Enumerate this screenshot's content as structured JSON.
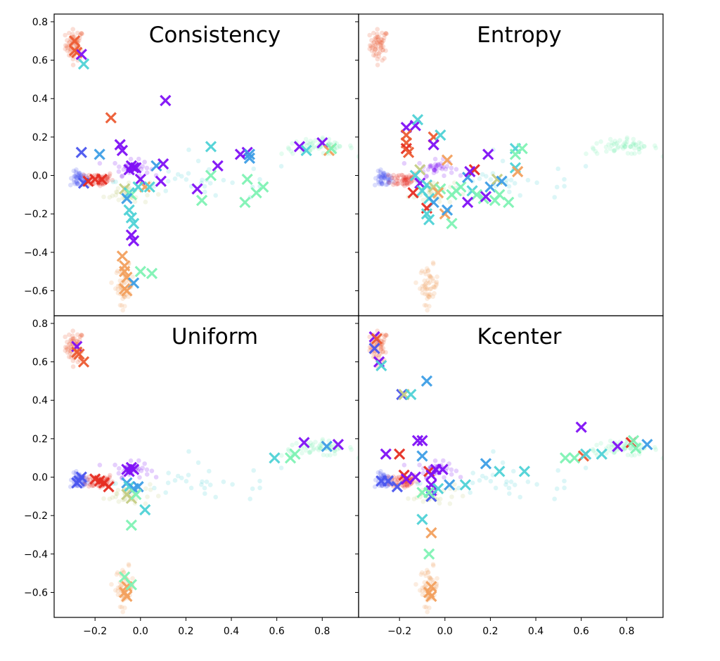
{
  "chart_data": {
    "type": "scatter",
    "layout": "2x2 grid, shared axes",
    "xlim": [
      -0.38,
      0.96
    ],
    "ylim": [
      -0.73,
      0.84
    ],
    "xticks": [
      -0.2,
      0.0,
      0.2,
      0.4,
      0.6,
      0.8
    ],
    "xtick_labels": [
      "−0.2",
      "0.0",
      "0.2",
      "0.4",
      "0.6",
      "0.8"
    ],
    "yticks": [
      0.8,
      0.6,
      0.4,
      0.2,
      0.0,
      -0.2,
      -0.4,
      -0.6
    ],
    "ytick_labels": [
      "0.8",
      "0.6",
      "0.4",
      "0.2",
      "0.0",
      "−0.2",
      "−0.4",
      "−0.6"
    ],
    "xlabel": "",
    "ylabel": "",
    "grid": false,
    "legend": "none",
    "class_colors": [
      "#7f10f6",
      "#4a55ee",
      "#3d9ee6",
      "#4fd2d6",
      "#7ff2b4",
      "#c4cc84",
      "#f2a05e",
      "#ec5b33",
      "#e62d22"
    ],
    "background_points": {
      "description": "faded pool of unlabeled samples, identical in all panels",
      "clusters": [
        {
          "class": 7,
          "center": [
            -0.29,
            0.68
          ],
          "spread": [
            0.02,
            0.04
          ],
          "count": 60
        },
        {
          "class": 1,
          "center": [
            -0.27,
            -0.02
          ],
          "spread": [
            0.02,
            0.02
          ],
          "count": 50
        },
        {
          "class": 8,
          "center": [
            -0.18,
            -0.02
          ],
          "spread": [
            0.03,
            0.02
          ],
          "count": 55
        },
        {
          "class": 0,
          "center": [
            -0.04,
            0.04
          ],
          "spread": [
            0.04,
            0.02
          ],
          "count": 40
        },
        {
          "class": 5,
          "center": [
            -0.06,
            -0.09
          ],
          "spread": [
            0.05,
            0.03
          ],
          "count": 35
        },
        {
          "class": 6,
          "center": [
            -0.07,
            -0.57
          ],
          "spread": [
            0.02,
            0.05
          ],
          "count": 55
        },
        {
          "class": 4,
          "center": [
            0.78,
            0.15
          ],
          "spread": [
            0.08,
            0.02
          ],
          "count": 60
        },
        {
          "class": 3,
          "center": [
            0.3,
            -0.03
          ],
          "spread": [
            0.2,
            0.05
          ],
          "count": 30
        }
      ]
    },
    "panels": [
      {
        "title": "Consistency",
        "position": "top-left",
        "selected": [
          [
            -0.29,
            0.7,
            7
          ],
          [
            -0.28,
            0.64,
            7
          ],
          [
            -0.26,
            0.63,
            0
          ],
          [
            -0.25,
            0.58,
            3
          ],
          [
            -0.29,
            0.65,
            7
          ],
          [
            -0.13,
            0.3,
            7
          ],
          [
            0.11,
            0.39,
            0
          ],
          [
            -0.26,
            0.12,
            1
          ],
          [
            -0.18,
            0.11,
            2
          ],
          [
            -0.09,
            0.16,
            0
          ],
          [
            -0.08,
            0.13,
            0
          ],
          [
            -0.25,
            -0.04,
            1
          ],
          [
            -0.2,
            -0.02,
            8
          ],
          [
            -0.17,
            -0.02,
            8
          ],
          [
            -0.23,
            -0.03,
            8
          ],
          [
            -0.04,
            0.05,
            0
          ],
          [
            -0.03,
            0.04,
            0
          ],
          [
            -0.05,
            0.03,
            0
          ],
          [
            -0.02,
            0.04,
            0
          ],
          [
            0.07,
            0.05,
            2
          ],
          [
            0.1,
            0.06,
            0
          ],
          [
            0.09,
            -0.03,
            0
          ],
          [
            0.0,
            -0.02,
            0
          ],
          [
            -0.07,
            -0.07,
            5
          ],
          [
            -0.05,
            -0.09,
            3
          ],
          [
            -0.04,
            -0.1,
            4
          ],
          [
            -0.06,
            -0.12,
            2
          ],
          [
            0.02,
            -0.06,
            6
          ],
          [
            -0.01,
            -0.06,
            3
          ],
          [
            0.04,
            -0.06,
            3
          ],
          [
            -0.05,
            -0.18,
            3
          ],
          [
            -0.04,
            -0.22,
            3
          ],
          [
            -0.03,
            -0.25,
            3
          ],
          [
            -0.04,
            -0.31,
            0
          ],
          [
            -0.03,
            -0.34,
            0
          ],
          [
            0.25,
            -0.07,
            0
          ],
          [
            0.27,
            -0.13,
            4
          ],
          [
            0.31,
            0.15,
            3
          ],
          [
            0.34,
            0.05,
            0
          ],
          [
            0.31,
            0.0,
            4
          ],
          [
            0.44,
            0.11,
            0
          ],
          [
            0.47,
            0.12,
            0
          ],
          [
            0.48,
            0.11,
            2
          ],
          [
            0.48,
            0.09,
            2
          ],
          [
            0.47,
            -0.02,
            4
          ],
          [
            0.46,
            -0.14,
            4
          ],
          [
            0.51,
            -0.09,
            4
          ],
          [
            0.54,
            -0.06,
            4
          ],
          [
            0.7,
            0.15,
            0
          ],
          [
            0.73,
            0.13,
            3
          ],
          [
            0.8,
            0.17,
            0
          ],
          [
            0.83,
            0.13,
            6
          ],
          [
            0.84,
            0.14,
            4
          ],
          [
            -0.08,
            -0.42,
            6
          ],
          [
            -0.07,
            -0.47,
            6
          ],
          [
            -0.07,
            -0.5,
            6
          ],
          [
            -0.06,
            -0.53,
            6
          ],
          [
            -0.03,
            -0.56,
            2
          ],
          [
            -0.07,
            -0.59,
            6
          ],
          [
            -0.06,
            -0.6,
            6
          ],
          [
            0.0,
            -0.5,
            4
          ],
          [
            0.05,
            -0.51,
            4
          ]
        ]
      },
      {
        "title": "Entropy",
        "position": "top-right",
        "selected": [
          [
            -0.17,
            0.25,
            0
          ],
          [
            -0.13,
            0.26,
            0
          ],
          [
            -0.12,
            0.29,
            3
          ],
          [
            -0.17,
            0.21,
            7
          ],
          [
            -0.17,
            0.17,
            7
          ],
          [
            -0.17,
            0.14,
            8
          ],
          [
            -0.16,
            0.12,
            7
          ],
          [
            -0.05,
            0.2,
            7
          ],
          [
            -0.02,
            0.21,
            3
          ],
          [
            -0.05,
            0.16,
            0
          ],
          [
            0.01,
            0.08,
            6
          ],
          [
            -0.11,
            0.03,
            5
          ],
          [
            -0.13,
            0.0,
            3
          ],
          [
            -0.11,
            -0.04,
            0
          ],
          [
            -0.1,
            -0.08,
            3
          ],
          [
            -0.14,
            -0.09,
            8
          ],
          [
            -0.08,
            -0.05,
            3
          ],
          [
            -0.05,
            -0.06,
            5
          ],
          [
            -0.02,
            -0.07,
            4
          ],
          [
            -0.03,
            -0.09,
            6
          ],
          [
            -0.07,
            -0.12,
            3
          ],
          [
            -0.05,
            -0.14,
            2
          ],
          [
            -0.08,
            -0.17,
            8
          ],
          [
            -0.08,
            -0.2,
            3
          ],
          [
            -0.07,
            -0.23,
            3
          ],
          [
            0.0,
            -0.2,
            6
          ],
          [
            0.01,
            -0.18,
            2
          ],
          [
            0.03,
            -0.25,
            4
          ],
          [
            0.03,
            -0.1,
            4
          ],
          [
            0.05,
            -0.08,
            4
          ],
          [
            0.07,
            -0.06,
            4
          ],
          [
            0.1,
            -0.01,
            2
          ],
          [
            0.13,
            0.03,
            8
          ],
          [
            0.11,
            0.02,
            0
          ],
          [
            0.12,
            -0.08,
            3
          ],
          [
            0.14,
            -0.1,
            4
          ],
          [
            0.17,
            -0.12,
            4
          ],
          [
            0.2,
            -0.06,
            2
          ],
          [
            0.23,
            -0.02,
            5
          ],
          [
            0.22,
            -0.13,
            4
          ],
          [
            0.1,
            -0.14,
            0
          ],
          [
            0.19,
            0.11,
            0
          ],
          [
            0.25,
            -0.03,
            2
          ],
          [
            0.31,
            0.14,
            3
          ],
          [
            0.34,
            0.14,
            4
          ],
          [
            0.31,
            0.11,
            4
          ],
          [
            0.31,
            0.04,
            3
          ],
          [
            0.32,
            0.02,
            6
          ],
          [
            0.24,
            -0.1,
            4
          ],
          [
            0.18,
            -0.11,
            0
          ],
          [
            0.28,
            -0.14,
            4
          ]
        ]
      },
      {
        "title": "Uniform",
        "position": "bottom-left",
        "selected": [
          [
            -0.28,
            0.68,
            0
          ],
          [
            -0.28,
            0.65,
            7
          ],
          [
            -0.27,
            0.64,
            7
          ],
          [
            -0.25,
            0.6,
            7
          ],
          [
            -0.27,
            -0.02,
            1
          ],
          [
            -0.26,
            0.0,
            1
          ],
          [
            -0.28,
            -0.03,
            1
          ],
          [
            -0.2,
            -0.01,
            8
          ],
          [
            -0.18,
            -0.02,
            8
          ],
          [
            -0.16,
            -0.03,
            8
          ],
          [
            -0.14,
            -0.05,
            8
          ],
          [
            -0.06,
            0.04,
            0
          ],
          [
            -0.05,
            0.03,
            0
          ],
          [
            -0.04,
            0.05,
            0
          ],
          [
            -0.03,
            0.04,
            0
          ],
          [
            -0.06,
            -0.03,
            2
          ],
          [
            -0.05,
            -0.05,
            3
          ],
          [
            -0.03,
            -0.06,
            2
          ],
          [
            -0.01,
            -0.05,
            2
          ],
          [
            -0.06,
            -0.09,
            5
          ],
          [
            -0.04,
            -0.11,
            5
          ],
          [
            -0.02,
            -0.09,
            4
          ],
          [
            0.02,
            -0.17,
            3
          ],
          [
            -0.04,
            -0.25,
            4
          ],
          [
            -0.07,
            -0.52,
            4
          ],
          [
            -0.06,
            -0.57,
            6
          ],
          [
            -0.07,
            -0.6,
            6
          ],
          [
            -0.06,
            -0.62,
            6
          ],
          [
            -0.04,
            -0.56,
            4
          ],
          [
            0.59,
            0.1,
            3
          ],
          [
            0.66,
            0.1,
            4
          ],
          [
            0.68,
            0.12,
            4
          ],
          [
            0.72,
            0.18,
            0
          ],
          [
            0.82,
            0.16,
            2
          ],
          [
            0.87,
            0.17,
            0
          ]
        ]
      },
      {
        "title": "Kcenter",
        "position": "bottom-right",
        "selected": [
          [
            -0.31,
            0.73,
            0
          ],
          [
            -0.3,
            0.72,
            7
          ],
          [
            -0.31,
            0.67,
            1
          ],
          [
            -0.29,
            0.6,
            0
          ],
          [
            -0.28,
            0.58,
            3
          ],
          [
            -0.19,
            0.43,
            1
          ],
          [
            -0.18,
            0.43,
            5
          ],
          [
            -0.15,
            0.43,
            3
          ],
          [
            -0.08,
            0.5,
            2
          ],
          [
            -0.26,
            0.12,
            0
          ],
          [
            -0.2,
            0.12,
            8
          ],
          [
            -0.12,
            0.19,
            0
          ],
          [
            -0.1,
            0.19,
            0
          ],
          [
            -0.1,
            0.11,
            2
          ],
          [
            -0.28,
            -0.02,
            1
          ],
          [
            -0.25,
            -0.02,
            1
          ],
          [
            -0.21,
            -0.05,
            1
          ],
          [
            -0.18,
            0.01,
            8
          ],
          [
            -0.17,
            -0.01,
            0
          ],
          [
            -0.13,
            0.0,
            0
          ],
          [
            -0.07,
            0.03,
            8
          ],
          [
            -0.06,
            0.01,
            0
          ],
          [
            -0.04,
            0.04,
            0
          ],
          [
            -0.01,
            0.04,
            0
          ],
          [
            -0.06,
            -0.04,
            0
          ],
          [
            -0.06,
            -0.07,
            0
          ],
          [
            -0.06,
            -0.1,
            1
          ],
          [
            -0.1,
            -0.08,
            4
          ],
          [
            -0.07,
            -0.08,
            4
          ],
          [
            -0.03,
            -0.06,
            3
          ],
          [
            0.02,
            -0.04,
            2
          ],
          [
            0.09,
            -0.04,
            3
          ],
          [
            0.18,
            0.07,
            2
          ],
          [
            0.24,
            0.03,
            3
          ],
          [
            0.35,
            0.03,
            3
          ],
          [
            -0.1,
            -0.22,
            3
          ],
          [
            -0.06,
            -0.29,
            6
          ],
          [
            -0.07,
            -0.4,
            4
          ],
          [
            -0.06,
            -0.57,
            6
          ],
          [
            -0.07,
            -0.6,
            6
          ],
          [
            -0.06,
            -0.62,
            6
          ],
          [
            0.6,
            0.26,
            0
          ],
          [
            0.53,
            0.1,
            4
          ],
          [
            0.57,
            0.1,
            4
          ],
          [
            0.61,
            0.11,
            7
          ],
          [
            0.62,
            0.12,
            3
          ],
          [
            0.69,
            0.12,
            3
          ],
          [
            0.76,
            0.16,
            0
          ],
          [
            0.82,
            0.18,
            8
          ],
          [
            0.83,
            0.19,
            4
          ],
          [
            0.84,
            0.15,
            4
          ],
          [
            0.89,
            0.17,
            2
          ]
        ]
      }
    ]
  }
}
